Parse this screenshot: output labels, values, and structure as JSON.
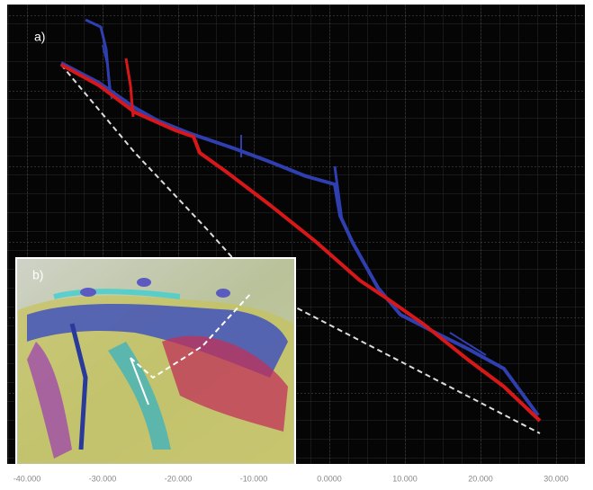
{
  "panels": {
    "a": {
      "label": "a)"
    },
    "b": {
      "label": "b)"
    }
  },
  "x_axis": {
    "tick_labels": [
      "-40.000",
      "-30.000",
      "-20.000",
      "-10.000",
      "0.0000",
      "10.000",
      "20.000",
      "30.000"
    ]
  }
}
